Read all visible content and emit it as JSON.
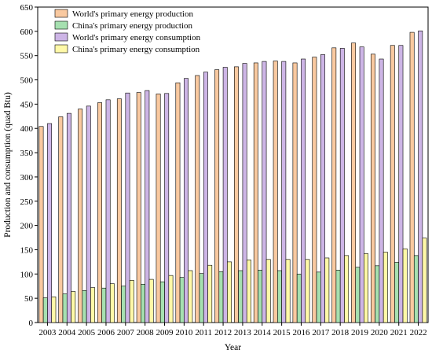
{
  "chart_data": {
    "type": "bar",
    "title": "",
    "xlabel": "Year",
    "ylabel": "Production and consumption (quad Btu)",
    "ylim": [
      0,
      650
    ],
    "yticks": [
      0,
      50,
      100,
      150,
      200,
      250,
      300,
      350,
      400,
      450,
      500,
      550,
      600,
      650
    ],
    "grid": false,
    "legend_position": "top-left",
    "categories": [
      "2003",
      "2004",
      "2005",
      "2006",
      "2007",
      "2008",
      "2009",
      "2010",
      "2011",
      "2012",
      "2013",
      "2014",
      "2015",
      "2016",
      "2017",
      "2018",
      "2019",
      "2020",
      "2021",
      "2022"
    ],
    "series": [
      {
        "name": "World's primary energy production",
        "color": "#F9C9A0",
        "values": [
          404,
          424,
          440,
          453,
          461,
          474,
          471,
          494,
          509,
          521,
          527,
          535,
          539,
          535,
          547,
          566,
          576,
          553,
          571,
          598
        ]
      },
      {
        "name": "China's primary energy production",
        "color": "#A6E0B0",
        "values": [
          51,
          59,
          66,
          71,
          75,
          79,
          84,
          93,
          101,
          105,
          107,
          108,
          107,
          100,
          104,
          108,
          114,
          117,
          124,
          138
        ]
      },
      {
        "name": "World's primary energy consumption",
        "color": "#CDB5E6",
        "values": [
          410,
          431,
          446,
          459,
          473,
          478,
          472,
          503,
          516,
          526,
          534,
          538,
          538,
          543,
          552,
          565,
          568,
          543,
          571,
          601
        ]
      },
      {
        "name": "China's primary energy consumption",
        "color": "#FFF9A8",
        "values": [
          53,
          64,
          72,
          80,
          87,
          89,
          97,
          107,
          118,
          125,
          129,
          130,
          130,
          130,
          133,
          138,
          142,
          145,
          152,
          174
        ]
      }
    ]
  }
}
